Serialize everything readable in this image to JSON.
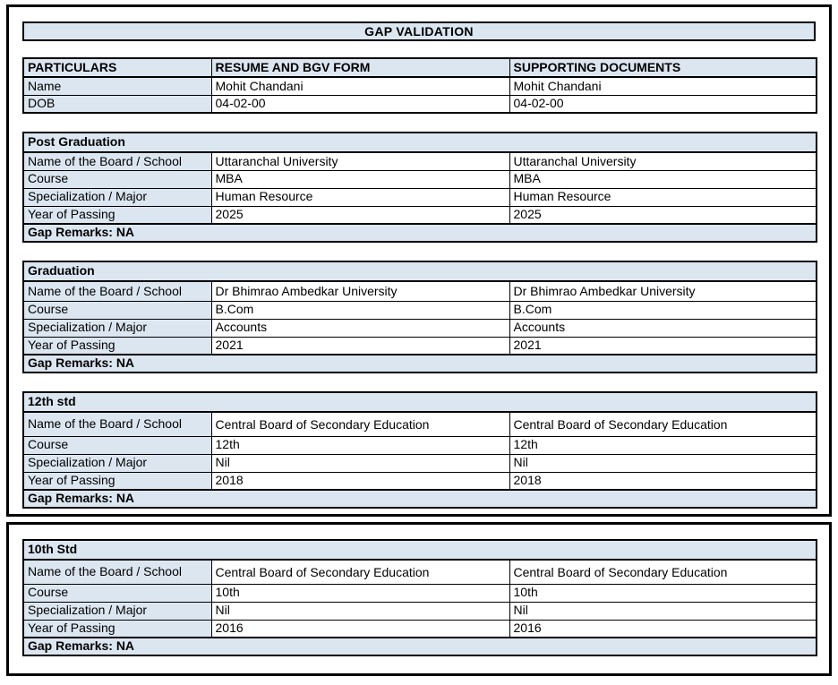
{
  "title": "GAP VALIDATION",
  "colors": {
    "header_bg": "#dce6f1",
    "border_color": "#000000",
    "text_color": "#000000",
    "page_bg": "#ffffff"
  },
  "main_table": {
    "headers": [
      "PARTICULARS",
      "RESUME AND BGV FORM",
      "SUPPORTING DOCUMENTS"
    ],
    "rows": [
      {
        "label": "Name",
        "resume": "Mohit Chandani",
        "supporting": "Mohit Chandani"
      },
      {
        "label": "DOB",
        "resume": "04-02-00",
        "supporting": "04-02-00"
      }
    ]
  },
  "sections": [
    {
      "title": "Post Graduation",
      "rows": [
        {
          "label": "Name of the Board / School",
          "resume": "Uttaranchal University",
          "supporting": "Uttaranchal University"
        },
        {
          "label": "Course",
          "resume": "MBA",
          "supporting": "MBA"
        },
        {
          "label": "Specialization / Major",
          "resume": "Human Resource",
          "supporting": "Human Resource"
        },
        {
          "label": "Year of Passing",
          "resume": "2025",
          "supporting": "2025"
        }
      ],
      "gap_remarks": "Gap Remarks: NA"
    },
    {
      "title": "Graduation",
      "rows": [
        {
          "label": "Name of the Board / School",
          "resume": "Dr Bhimrao Ambedkar University",
          "supporting": "Dr Bhimrao Ambedkar University"
        },
        {
          "label": "Course",
          "resume": "B.Com",
          "supporting": "B.Com"
        },
        {
          "label": "Specialization / Major",
          "resume": "Accounts",
          "supporting": "Accounts"
        },
        {
          "label": "Year of Passing",
          "resume": "2021",
          "supporting": "2021"
        }
      ],
      "gap_remarks": "Gap Remarks: NA"
    },
    {
      "title": "12th std",
      "rows": [
        {
          "label": "Name of the Board / School",
          "resume": "Central Board of Secondary Education",
          "supporting": "Central Board of Secondary Education"
        },
        {
          "label": "Course",
          "resume": "12th",
          "supporting": "12th"
        },
        {
          "label": "Specialization / Major",
          "resume": "Nil",
          "supporting": "Nil"
        },
        {
          "label": "Year of Passing",
          "resume": "2018",
          "supporting": "2018"
        }
      ],
      "gap_remarks": "Gap Remarks: NA"
    },
    {
      "title": "10th Std",
      "rows": [
        {
          "label": "Name of the Board / School",
          "resume": "Central Board of Secondary Education",
          "supporting": "Central Board of Secondary Education"
        },
        {
          "label": "Course",
          "resume": "10th",
          "supporting": "10th"
        },
        {
          "label": "Specialization / Major",
          "resume": "Nil",
          "supporting": "Nil"
        },
        {
          "label": "Year of Passing",
          "resume": "2016",
          "supporting": "2016"
        }
      ],
      "gap_remarks": "Gap Remarks: NA"
    }
  ]
}
